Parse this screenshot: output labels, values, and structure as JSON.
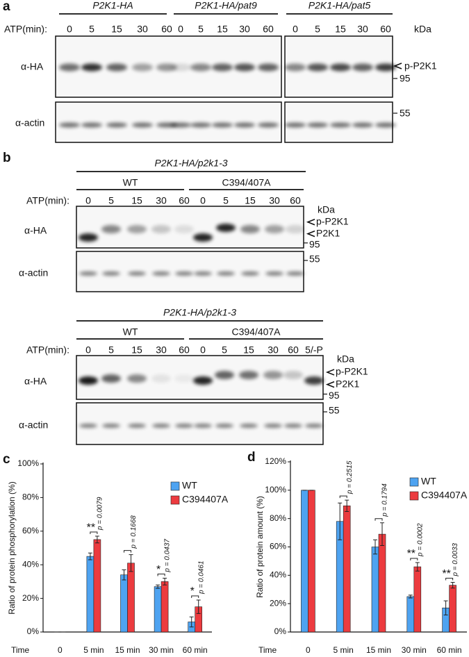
{
  "panel_a": {
    "label": "a",
    "atp_label": "ATP(min):",
    "kda": "kDa",
    "band_label": "p-P2K1",
    "markers": [
      "95",
      "55"
    ],
    "antibodies": [
      "α-HA",
      "α-actin"
    ],
    "groups": [
      {
        "name": "P2K1-HA",
        "lanes": [
          "0",
          "5",
          "15",
          "30",
          "60"
        ]
      },
      {
        "name": "P2K1-HA/pat9",
        "lanes": [
          "0",
          "5",
          "15",
          "30",
          "60"
        ]
      },
      {
        "name": "P2K1-HA/pat5",
        "lanes": [
          "0",
          "5",
          "15",
          "30",
          "60"
        ]
      }
    ]
  },
  "panel_b": {
    "label": "b",
    "blots": [
      {
        "title": "P2K1-HA/p2k1-3",
        "atp_label": "ATP(min):",
        "kda": "kDa",
        "band_labels": [
          "p-P2K1",
          "P2K1"
        ],
        "markers": [
          "95",
          "55"
        ],
        "antibodies": [
          "α-HA",
          "α-actin"
        ],
        "groups": [
          {
            "name": "WT",
            "lanes": [
              "0",
              "5",
              "15",
              "30",
              "60"
            ]
          },
          {
            "name": "C394/407A",
            "lanes": [
              "0",
              "5",
              "15",
              "30",
              "60"
            ]
          }
        ]
      },
      {
        "title": "P2K1-HA/p2k1-3",
        "atp_label": "ATP(min):",
        "kda": "kDa",
        "band_labels": [
          "p-P2K1",
          "P2K1"
        ],
        "markers": [
          "95",
          "55"
        ],
        "antibodies": [
          "α-HA",
          "α-actin"
        ],
        "groups": [
          {
            "name": "WT",
            "lanes": [
              "0",
              "5",
              "15",
              "30",
              "60"
            ]
          },
          {
            "name": "C394/407A",
            "lanes": [
              "0",
              "5",
              "15",
              "30",
              "60",
              "5/-P"
            ]
          }
        ]
      }
    ]
  },
  "chart_data": [
    {
      "type": "bar",
      "panel_label": "c",
      "ylabel": "Ratio of protein phosphorylation (%)",
      "xlabel": "Time",
      "categories": [
        "0",
        "5 min",
        "15 min",
        "30 min",
        "60 min"
      ],
      "series": [
        {
          "name": "WT",
          "color": "#4ea3f1",
          "values": [
            0,
            45,
            34,
            27,
            6
          ],
          "errors": [
            0,
            2,
            3,
            1,
            3
          ]
        },
        {
          "name": "C394407A",
          "color": "#ec3b3f",
          "values": [
            0,
            55,
            41,
            30,
            15
          ],
          "errors": [
            0,
            2,
            5,
            2,
            4
          ]
        }
      ],
      "ylim": [
        0,
        100
      ],
      "yticks": [
        {
          "value": 0,
          "label": "0%"
        },
        {
          "value": 20,
          "label": "20%"
        },
        {
          "value": 40,
          "label": "40%"
        },
        {
          "value": 60,
          "label": "60%"
        },
        {
          "value": 80,
          "label": "80%"
        },
        {
          "value": 100,
          "label": "100%"
        }
      ],
      "p_values": [
        null,
        "p = 0.0079",
        "p = 0.1668",
        "p = 0.0437",
        "p = 0.0461"
      ],
      "significance": [
        null,
        "**",
        null,
        "*",
        "*"
      ],
      "legend": "upper right"
    },
    {
      "type": "bar",
      "panel_label": "d",
      "ylabel": "Ratio of protein amount (%)",
      "xlabel": "Time",
      "categories": [
        "0",
        "5 min",
        "15 min",
        "30 min",
        "60 min"
      ],
      "series": [
        {
          "name": "WT",
          "color": "#4ea3f1",
          "values": [
            100,
            78,
            60,
            25,
            17
          ],
          "errors": [
            0,
            13,
            5,
            1,
            5
          ]
        },
        {
          "name": "C394407A",
          "color": "#ec3b3f",
          "values": [
            100,
            89,
            69,
            46,
            33
          ],
          "errors": [
            0,
            4,
            8,
            3,
            2
          ]
        }
      ],
      "ylim": [
        0,
        120
      ],
      "yticks": [
        {
          "value": 0,
          "label": "0%"
        },
        {
          "value": 20,
          "label": "20%"
        },
        {
          "value": 40,
          "label": "40%"
        },
        {
          "value": 60,
          "label": "60%"
        },
        {
          "value": 80,
          "label": "80%"
        },
        {
          "value": 100,
          "label": "100%"
        },
        {
          "value": 120,
          "label": "120%"
        }
      ],
      "p_values": [
        null,
        "p = 0.2515",
        "p = 0.1794",
        "p = 0.0002",
        "p = 0.0033"
      ],
      "significance": [
        null,
        null,
        null,
        "**",
        "**"
      ],
      "legend": "upper right"
    }
  ]
}
